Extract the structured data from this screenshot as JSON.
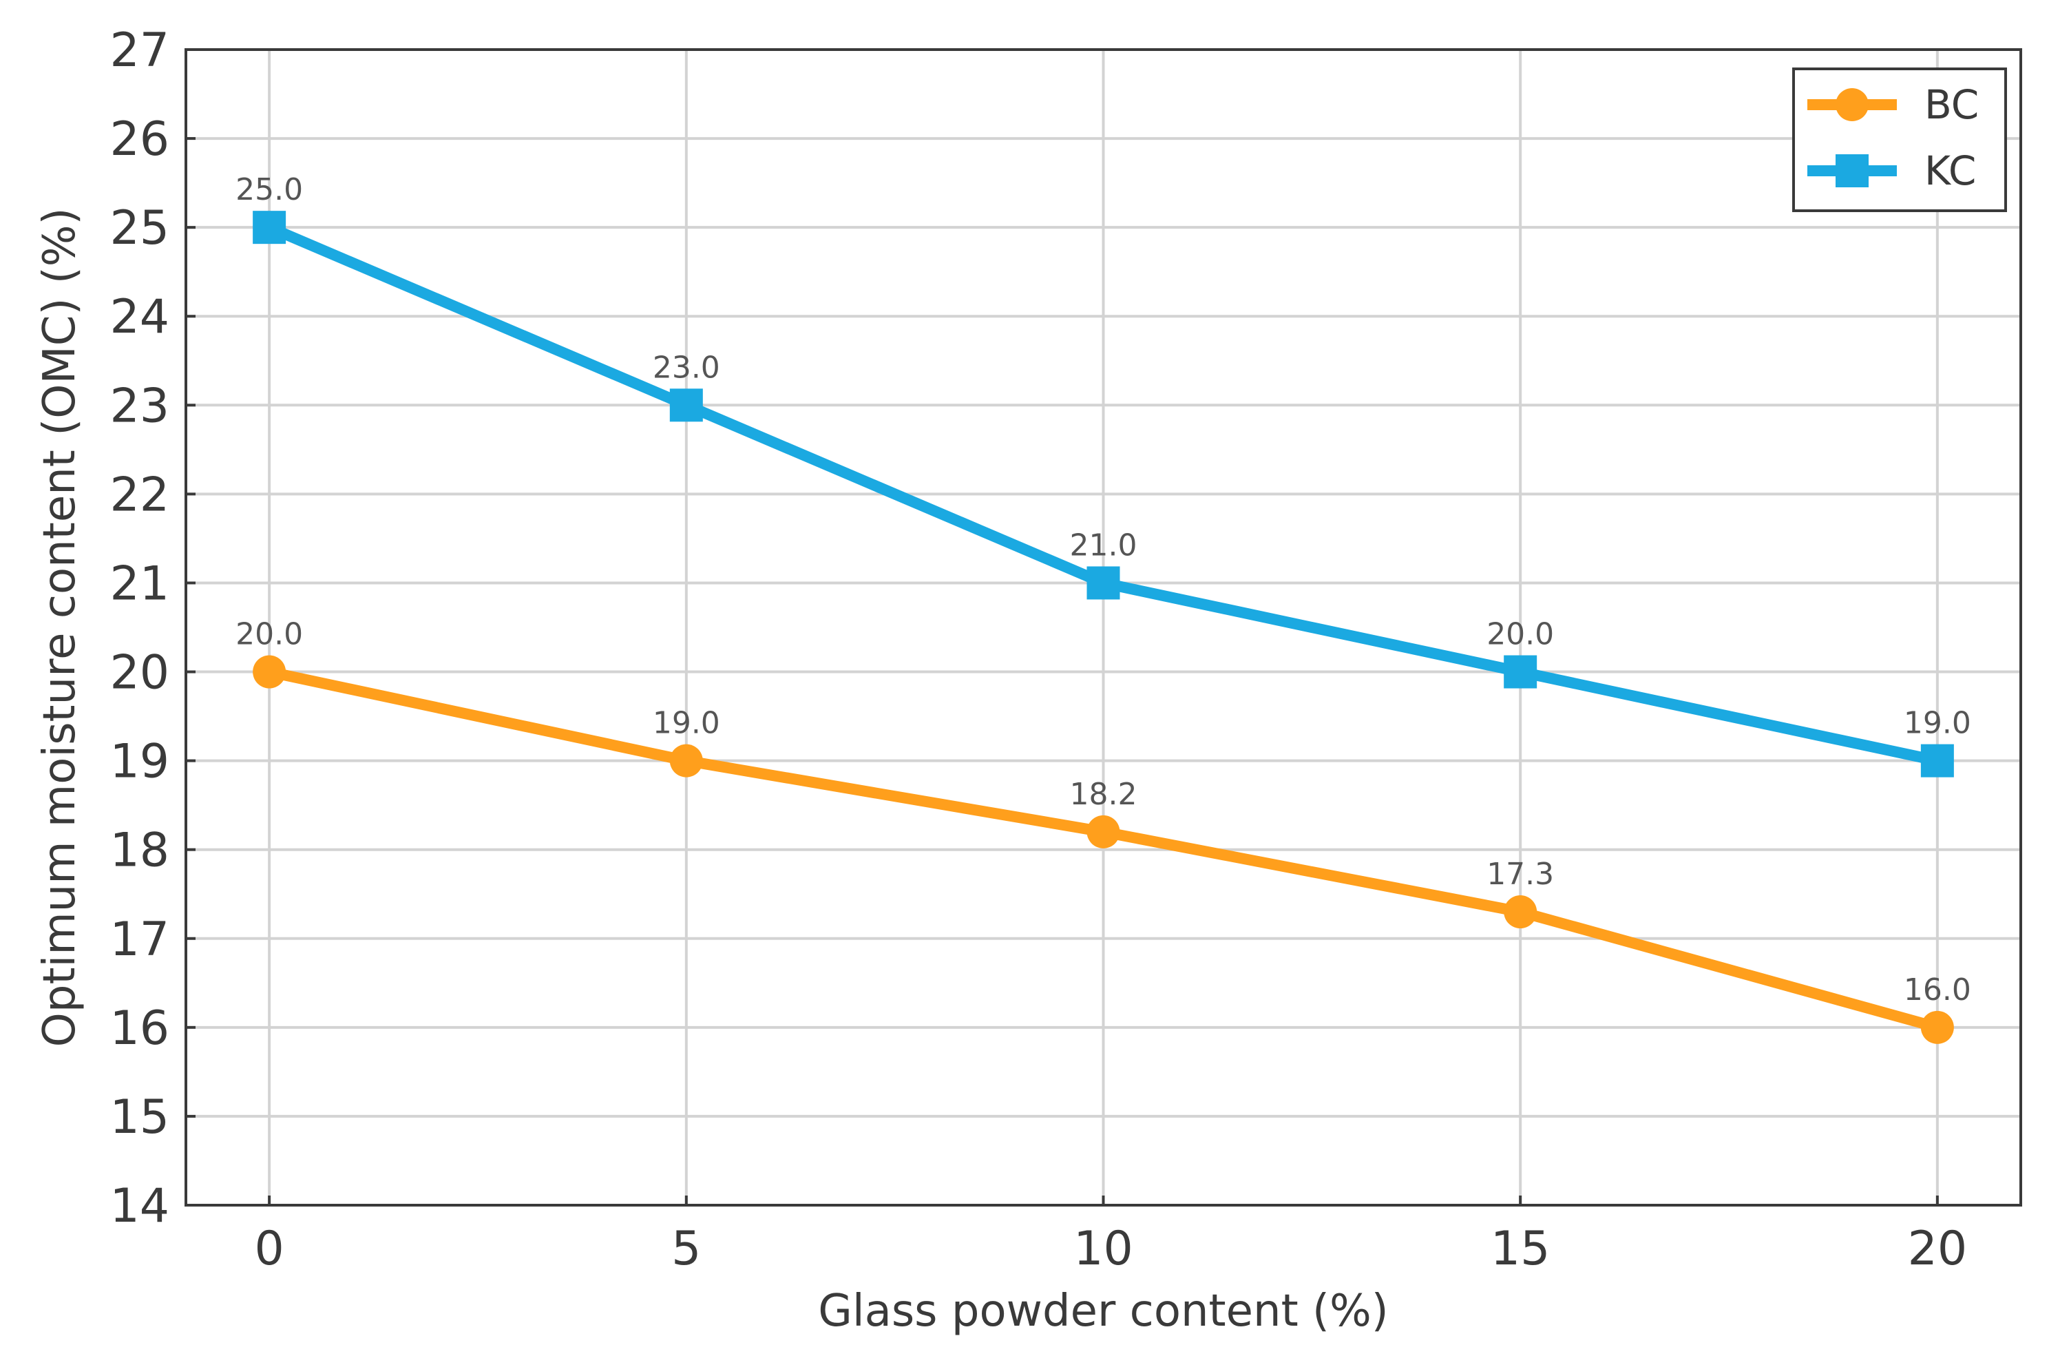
{
  "chart_data": {
    "type": "line",
    "title": "",
    "xlabel": "Glass powder content (%)",
    "ylabel": "Optimum moisture content (OMC) (%)",
    "x": [
      0,
      5,
      10,
      15,
      20
    ],
    "xlim": [
      -1,
      21
    ],
    "ylim": [
      14,
      27
    ],
    "xticks": [
      0,
      5,
      10,
      15,
      20
    ],
    "yticks": [
      14,
      15,
      16,
      17,
      18,
      19,
      20,
      21,
      22,
      23,
      24,
      25,
      26,
      27
    ],
    "grid": true,
    "legend_position": "top-right",
    "series": [
      {
        "name": "BC",
        "color": "#ff9f1c",
        "marker": "circle",
        "values": [
          20.0,
          19.0,
          18.2,
          17.3,
          16.0
        ],
        "labels": [
          "20.0",
          "19.0",
          "18.2",
          "17.3",
          "16.0"
        ]
      },
      {
        "name": "KC",
        "color": "#1ba9e1",
        "marker": "square",
        "values": [
          25.0,
          23.0,
          21.0,
          20.0,
          19.0
        ],
        "labels": [
          "25.0",
          "23.0",
          "21.0",
          "20.0",
          "19.0"
        ]
      }
    ]
  }
}
